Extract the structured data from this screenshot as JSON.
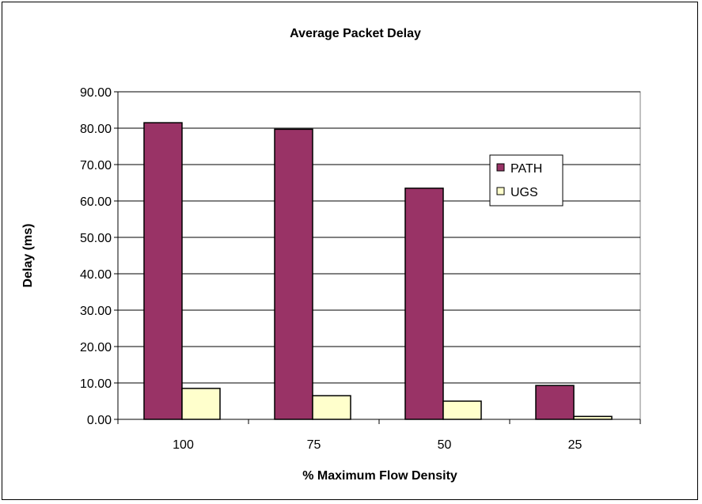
{
  "chart_data": {
    "type": "bar",
    "title": "Average Packet Delay",
    "xlabel": "% Maximum Flow Density",
    "ylabel": "Delay (ms)",
    "categories": [
      "100",
      "75",
      "50",
      "25"
    ],
    "ylim": [
      0,
      90
    ],
    "yticks": [
      "0.00",
      "10.00",
      "20.00",
      "30.00",
      "40.00",
      "50.00",
      "60.00",
      "70.00",
      "80.00",
      "90.00"
    ],
    "grid": true,
    "legend_position": "right",
    "series": [
      {
        "name": "PATH",
        "values": [
          81.5,
          79.7,
          63.5,
          9.3
        ],
        "color": "#993366"
      },
      {
        "name": "UGS",
        "values": [
          8.5,
          6.5,
          5.0,
          0.8
        ],
        "color": "#FFFFCC"
      }
    ]
  }
}
